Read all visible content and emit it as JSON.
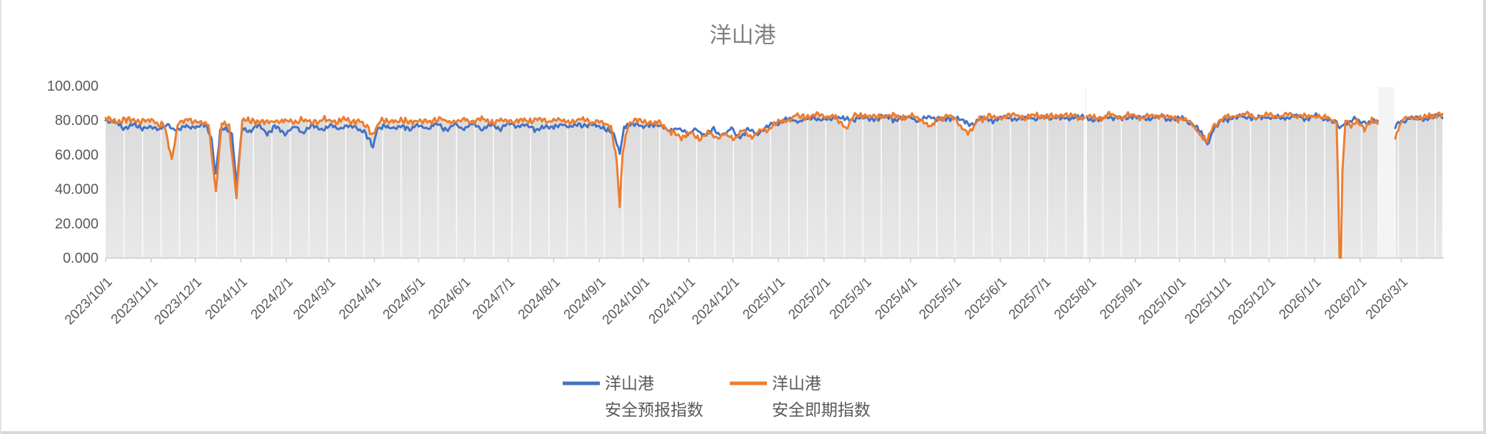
{
  "window": {
    "background": "#FFFFFF",
    "border_color": "#D9D9D9",
    "left_edge_color": "#E3E3E3"
  },
  "chart_data": {
    "type": "line",
    "title": "洋山港",
    "xlabel": "",
    "ylabel": "",
    "ylim": [
      0,
      100
    ],
    "y_tick_labels": [
      "100.000",
      "80.000",
      "60.000",
      "40.000",
      "20.000",
      "0.000"
    ],
    "y_tick_values": [
      100,
      80,
      60,
      40,
      20,
      0
    ],
    "x_tick_labels": [
      "2023/10/1",
      "2023/11/1",
      "2023/12/1",
      "2024/1/1",
      "2024/2/1",
      "2024/3/1",
      "2024/4/1",
      "2024/5/1",
      "2024/6/1",
      "2024/7/1",
      "2024/8/1",
      "2024/9/1",
      "2024/10/1",
      "2024/11/1",
      "2024/12/1",
      "2025/1/1",
      "2025/2/1",
      "2025/3/1",
      "2025/4/1",
      "2025/5/1",
      "2025/6/1",
      "2025/7/1",
      "2025/8/1",
      "2025/9/1",
      "2025/10/1",
      "2025/11/1",
      "2025/12/1",
      "2026/1/1",
      "2026/2/1",
      "2026/3/1"
    ],
    "x_tick_day_offsets": [
      0,
      31,
      61,
      92,
      123,
      152,
      183,
      213,
      244,
      274,
      305,
      336,
      366,
      397,
      427,
      458,
      489,
      517,
      548,
      578,
      609,
      639,
      670,
      701,
      731,
      762,
      792,
      823,
      854,
      882
    ],
    "x_start_date": "2023/10/1",
    "x_total_days": 910,
    "data_gaps_days": [
      [
        667,
        667
      ],
      [
        867,
        877
      ]
    ],
    "grid": {
      "vertical": true,
      "horizontal": false
    },
    "legend_position": "bottom",
    "colors": {
      "title": "#808080",
      "axis_label": "#595959",
      "axis_line": "#C9C9C9",
      "area_fill_top": "#DBDBDB",
      "area_fill_bottom": "#E9E9E9",
      "gridline": "#FAFAFA",
      "gap_strip": "#F4F4F4"
    },
    "series": [
      {
        "name": "洋山港 安全预报指数",
        "color": "#4472C4",
        "noise_amp": 1.0,
        "seed": 7,
        "draws_area": false,
        "anchors": [
          [
            0,
            80
          ],
          [
            6,
            78.5
          ],
          [
            12,
            75
          ],
          [
            18,
            78
          ],
          [
            24,
            74.5
          ],
          [
            30,
            77
          ],
          [
            36,
            74
          ],
          [
            42,
            77.5
          ],
          [
            48,
            73.5
          ],
          [
            55,
            77
          ],
          [
            62,
            75
          ],
          [
            68,
            78
          ],
          [
            72,
            70
          ],
          [
            75,
            47
          ],
          [
            78,
            74
          ],
          [
            82,
            76
          ],
          [
            86,
            72
          ],
          [
            89,
            41
          ],
          [
            93,
            76
          ],
          [
            98,
            73
          ],
          [
            104,
            77
          ],
          [
            110,
            72.5
          ],
          [
            116,
            76
          ],
          [
            122,
            72
          ],
          [
            128,
            76
          ],
          [
            134,
            73
          ],
          [
            140,
            77
          ],
          [
            146,
            74
          ],
          [
            152,
            77
          ],
          [
            158,
            74.5
          ],
          [
            164,
            77
          ],
          [
            170,
            75
          ],
          [
            176,
            73.5
          ],
          [
            180,
            68
          ],
          [
            182,
            64
          ],
          [
            185,
            75
          ],
          [
            190,
            77
          ],
          [
            196,
            74
          ],
          [
            202,
            77
          ],
          [
            208,
            74.5
          ],
          [
            214,
            77.5
          ],
          [
            220,
            75
          ],
          [
            226,
            78
          ],
          [
            232,
            74.5
          ],
          [
            238,
            77
          ],
          [
            244,
            75
          ],
          [
            250,
            78
          ],
          [
            256,
            74.5
          ],
          [
            262,
            77
          ],
          [
            268,
            75
          ],
          [
            274,
            78
          ],
          [
            280,
            75.5
          ],
          [
            286,
            78
          ],
          [
            292,
            74
          ],
          [
            298,
            77
          ],
          [
            304,
            75
          ],
          [
            310,
            78
          ],
          [
            316,
            75
          ],
          [
            322,
            78
          ],
          [
            328,
            76
          ],
          [
            334,
            77.5
          ],
          [
            340,
            75
          ],
          [
            346,
            72
          ],
          [
            350,
            61
          ],
          [
            353,
            76
          ],
          [
            360,
            78
          ],
          [
            368,
            76
          ],
          [
            376,
            78
          ],
          [
            384,
            73
          ],
          [
            390,
            76
          ],
          [
            396,
            71
          ],
          [
            402,
            75
          ],
          [
            408,
            70.5
          ],
          [
            414,
            75
          ],
          [
            420,
            71
          ],
          [
            426,
            75
          ],
          [
            432,
            70
          ],
          [
            438,
            74.5
          ],
          [
            444,
            72
          ],
          [
            450,
            76
          ],
          [
            458,
            79
          ],
          [
            466,
            80.5
          ],
          [
            474,
            79.5
          ],
          [
            482,
            81.5
          ],
          [
            490,
            80
          ],
          [
            498,
            82
          ],
          [
            506,
            80
          ],
          [
            514,
            82
          ],
          [
            522,
            80.5
          ],
          [
            530,
            82
          ],
          [
            538,
            80
          ],
          [
            546,
            82
          ],
          [
            554,
            79.5
          ],
          [
            562,
            81.5
          ],
          [
            570,
            80
          ],
          [
            578,
            81.5
          ],
          [
            584,
            79
          ],
          [
            590,
            77.5
          ],
          [
            596,
            80.5
          ],
          [
            604,
            80
          ],
          [
            612,
            81.5
          ],
          [
            620,
            80
          ],
          [
            628,
            82
          ],
          [
            636,
            80.5
          ],
          [
            644,
            82
          ],
          [
            652,
            80.5
          ],
          [
            660,
            82
          ],
          [
            668,
            81
          ],
          [
            676,
            80
          ],
          [
            684,
            82
          ],
          [
            692,
            80.5
          ],
          [
            700,
            82
          ],
          [
            708,
            80.5
          ],
          [
            716,
            82
          ],
          [
            724,
            80.5
          ],
          [
            732,
            81
          ],
          [
            740,
            78
          ],
          [
            746,
            72
          ],
          [
            750,
            66
          ],
          [
            754,
            74
          ],
          [
            760,
            80
          ],
          [
            768,
            81.5
          ],
          [
            776,
            82
          ],
          [
            784,
            81
          ],
          [
            792,
            82
          ],
          [
            800,
            81
          ],
          [
            808,
            82.5
          ],
          [
            816,
            81
          ],
          [
            824,
            82
          ],
          [
            832,
            80.5
          ],
          [
            838,
            78
          ],
          [
            840,
            75
          ],
          [
            844,
            79
          ],
          [
            850,
            80
          ],
          [
            856,
            78.5
          ],
          [
            862,
            80
          ],
          [
            866,
            79
          ],
          [
            878,
            76
          ],
          [
            882,
            79.5
          ],
          [
            888,
            81
          ],
          [
            896,
            80.5
          ],
          [
            904,
            82
          ],
          [
            910,
            82.5
          ]
        ]
      },
      {
        "name": "洋山港 安全即期指数",
        "color": "#ED7D31",
        "noise_amp": 1.25,
        "seed": 3,
        "draws_area": true,
        "anchors": [
          [
            0,
            80.5
          ],
          [
            8,
            79.5
          ],
          [
            16,
            80
          ],
          [
            24,
            79
          ],
          [
            32,
            79.5
          ],
          [
            40,
            77
          ],
          [
            45,
            56
          ],
          [
            49,
            78.5
          ],
          [
            56,
            79.5
          ],
          [
            64,
            79
          ],
          [
            70,
            77.5
          ],
          [
            75,
            39
          ],
          [
            79,
            78
          ],
          [
            84,
            76.5
          ],
          [
            89,
            36
          ],
          [
            93,
            79
          ],
          [
            100,
            79.5
          ],
          [
            108,
            78.5
          ],
          [
            116,
            79.5
          ],
          [
            124,
            79
          ],
          [
            132,
            80
          ],
          [
            140,
            79
          ],
          [
            148,
            80
          ],
          [
            156,
            79
          ],
          [
            164,
            80
          ],
          [
            172,
            79
          ],
          [
            178,
            76
          ],
          [
            182,
            72
          ],
          [
            187,
            79
          ],
          [
            194,
            80
          ],
          [
            202,
            79
          ],
          [
            210,
            80
          ],
          [
            218,
            79
          ],
          [
            226,
            80.5
          ],
          [
            234,
            79
          ],
          [
            242,
            80
          ],
          [
            250,
            79.5
          ],
          [
            258,
            80
          ],
          [
            266,
            79
          ],
          [
            274,
            80
          ],
          [
            282,
            79.5
          ],
          [
            290,
            80
          ],
          [
            298,
            79
          ],
          [
            306,
            80
          ],
          [
            314,
            79
          ],
          [
            322,
            80
          ],
          [
            330,
            79.5
          ],
          [
            338,
            78.5
          ],
          [
            344,
            77
          ],
          [
            348,
            55
          ],
          [
            350,
            29
          ],
          [
            352,
            62
          ],
          [
            356,
            79
          ],
          [
            364,
            79.5
          ],
          [
            372,
            78.5
          ],
          [
            380,
            77
          ],
          [
            386,
            73
          ],
          [
            392,
            69.5
          ],
          [
            398,
            73.5
          ],
          [
            404,
            68
          ],
          [
            410,
            74
          ],
          [
            416,
            68.5
          ],
          [
            422,
            73
          ],
          [
            428,
            68.5
          ],
          [
            434,
            74.5
          ],
          [
            440,
            70
          ],
          [
            446,
            74
          ],
          [
            452,
            75
          ],
          [
            458,
            78.5
          ],
          [
            464,
            80.5
          ],
          [
            472,
            82.5
          ],
          [
            480,
            82
          ],
          [
            488,
            83
          ],
          [
            496,
            82
          ],
          [
            504,
            75.5
          ],
          [
            509,
            81.5
          ],
          [
            516,
            83
          ],
          [
            524,
            81.5
          ],
          [
            532,
            83
          ],
          [
            540,
            81.5
          ],
          [
            548,
            82.5
          ],
          [
            556,
            80
          ],
          [
            562,
            75.5
          ],
          [
            567,
            81
          ],
          [
            574,
            82
          ],
          [
            580,
            79
          ],
          [
            588,
            72
          ],
          [
            594,
            80.5
          ],
          [
            602,
            82
          ],
          [
            610,
            81
          ],
          [
            618,
            83
          ],
          [
            626,
            81.5
          ],
          [
            634,
            83
          ],
          [
            642,
            81.5
          ],
          [
            650,
            83
          ],
          [
            658,
            82
          ],
          [
            666,
            82.5
          ],
          [
            668,
            82
          ],
          [
            676,
            81
          ],
          [
            684,
            83
          ],
          [
            692,
            81.5
          ],
          [
            700,
            83
          ],
          [
            708,
            81.5
          ],
          [
            716,
            83
          ],
          [
            724,
            81.5
          ],
          [
            732,
            81
          ],
          [
            740,
            77
          ],
          [
            746,
            71
          ],
          [
            750,
            67
          ],
          [
            754,
            76
          ],
          [
            760,
            81
          ],
          [
            768,
            82.5
          ],
          [
            776,
            83
          ],
          [
            784,
            82
          ],
          [
            792,
            83
          ],
          [
            800,
            82
          ],
          [
            808,
            83
          ],
          [
            816,
            82
          ],
          [
            824,
            82.5
          ],
          [
            832,
            81
          ],
          [
            838,
            79
          ],
          [
            839,
            45
          ],
          [
            840,
            0
          ],
          [
            841,
            0
          ],
          [
            842,
            50
          ],
          [
            844,
            79
          ],
          [
            848,
            76.5
          ],
          [
            852,
            80
          ],
          [
            857,
            74.5
          ],
          [
            862,
            80
          ],
          [
            866,
            79
          ],
          [
            878,
            70
          ],
          [
            880,
            76
          ],
          [
            884,
            81
          ],
          [
            890,
            82
          ],
          [
            896,
            81
          ],
          [
            903,
            83
          ],
          [
            910,
            83
          ]
        ]
      }
    ]
  },
  "legend": {
    "entries": [
      {
        "line1": "洋山港",
        "line2": "安全预报指数",
        "color": "#4472C4"
      },
      {
        "line1": "洋山港",
        "line2": "安全即期指数",
        "color": "#ED7D31"
      }
    ]
  }
}
